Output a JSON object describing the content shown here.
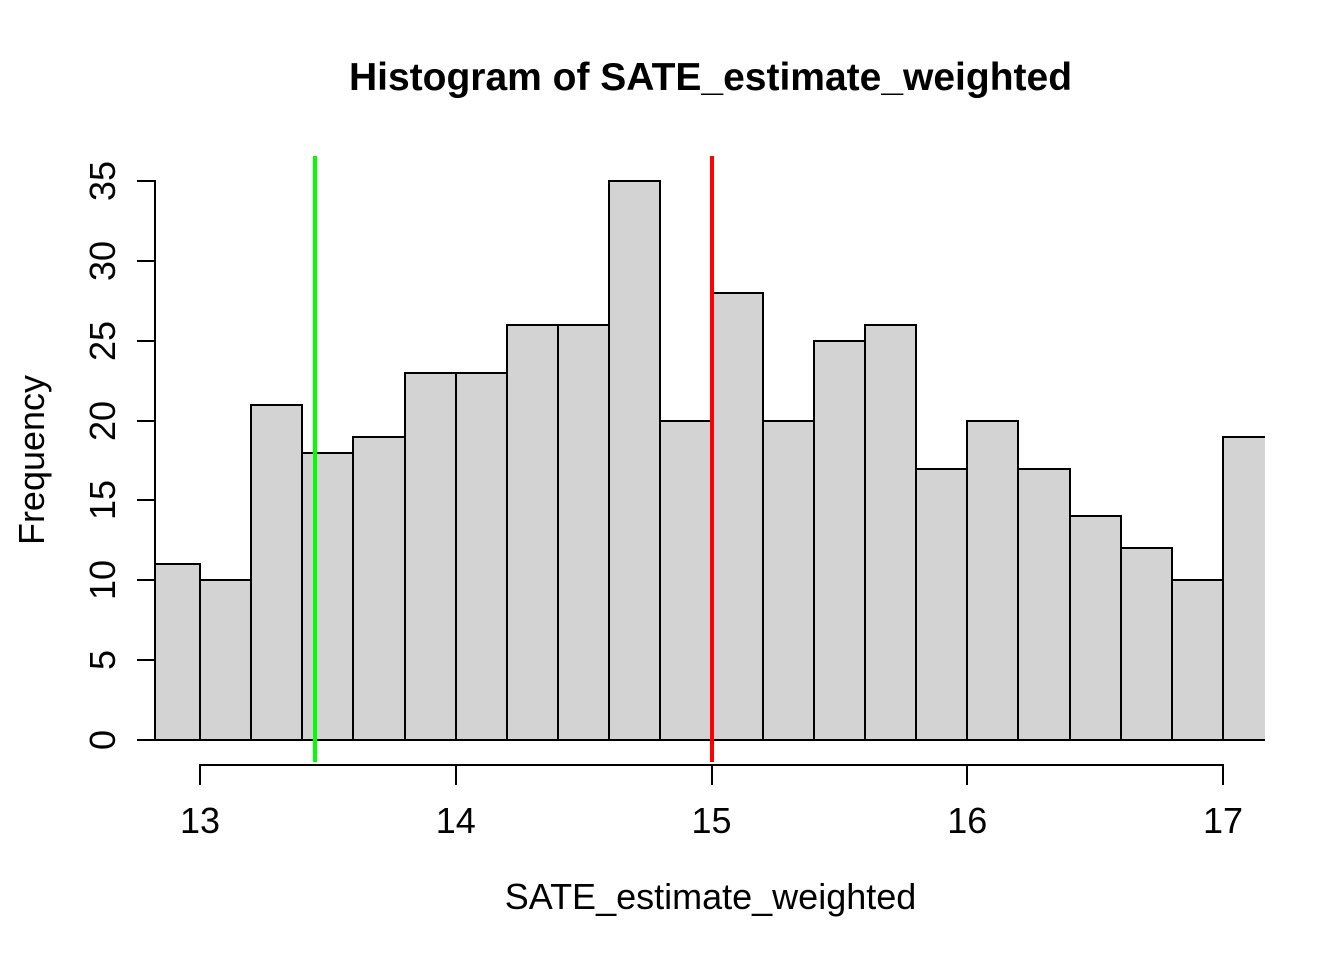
{
  "title": "Histogram of SATE_estimate_weighted",
  "chart_data": {
    "type": "bar",
    "subtype": "histogram",
    "title": "Histogram of SATE_estimate_weighted",
    "xlabel": "SATE_estimate_weighted",
    "ylabel": "Frequency",
    "bin_width": 0.2,
    "bin_edges": [
      12.8,
      13.0,
      13.2,
      13.4,
      13.6,
      13.8,
      14.0,
      14.2,
      14.4,
      14.6,
      14.8,
      15.0,
      15.2,
      15.4,
      15.6,
      15.8,
      16.0,
      16.2,
      16.4,
      16.6,
      16.8,
      17.0,
      17.2
    ],
    "counts": [
      11,
      10,
      21,
      18,
      19,
      23,
      23,
      26,
      26,
      35,
      20,
      28,
      20,
      25,
      26,
      17,
      20,
      17,
      14,
      12,
      10,
      19
    ],
    "x_ticks": [
      13,
      14,
      15,
      16,
      17
    ],
    "y_ticks": [
      0,
      5,
      10,
      15,
      20,
      25,
      30,
      35
    ],
    "xlim": [
      12.828,
      17.164
    ],
    "ylim": [
      0,
      35
    ],
    "grid": false,
    "legend_position": "none",
    "bar_fill_color": "#D3D3D3",
    "bar_border_color": "#000000",
    "axis_color": "#000000",
    "vlines": [
      {
        "x": 13.45,
        "color": "#00FF00",
        "name": "green-vline"
      },
      {
        "x": 15.0,
        "color": "#FF0000",
        "name": "red-vline"
      }
    ]
  }
}
